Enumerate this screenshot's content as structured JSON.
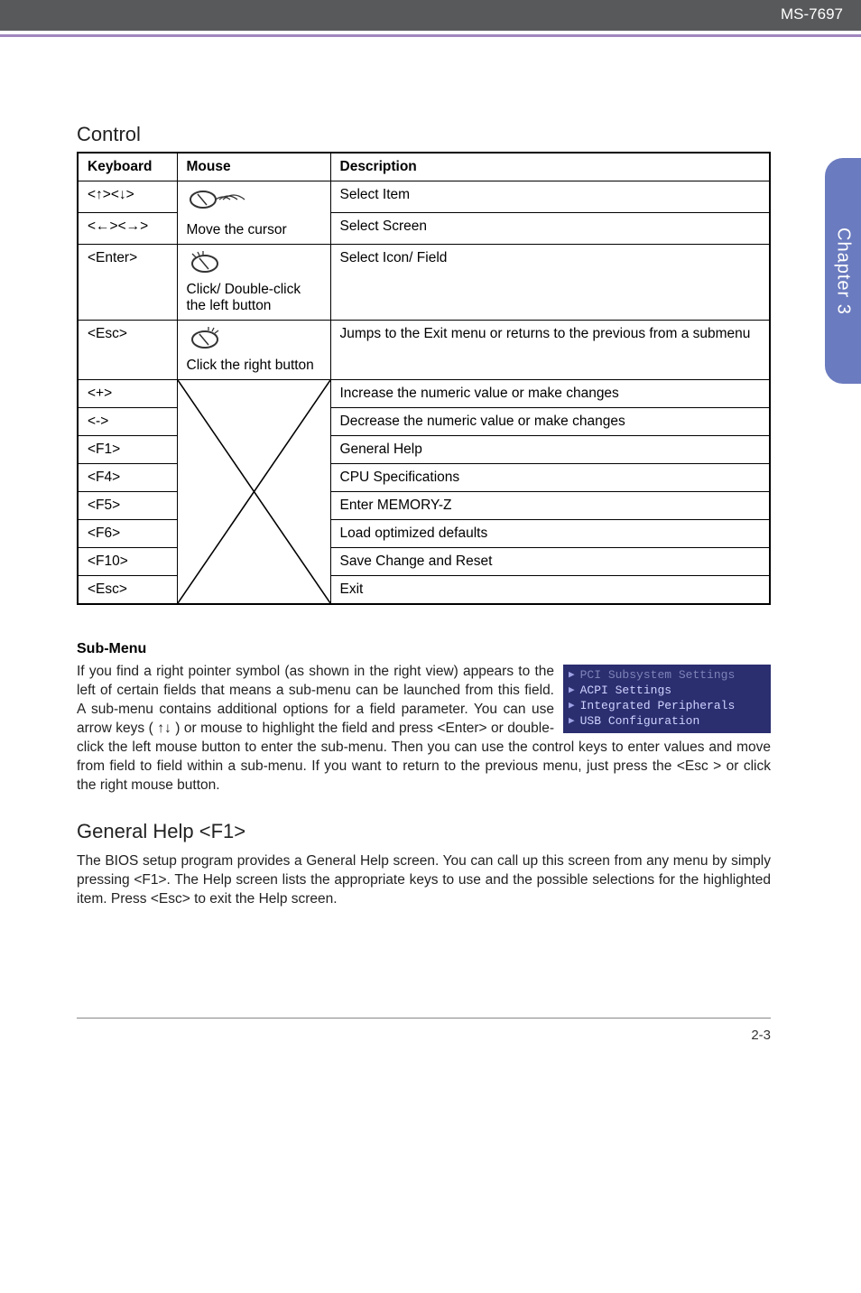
{
  "colors": {
    "header_bg": "#58595b",
    "accent": "#a186be",
    "sidetab_bg": "#6b7bbf",
    "bios_bg": "#2b2e6f",
    "bios_text": "#cfd3ff",
    "bios_dim": "#7e83b8"
  },
  "header": {
    "model": "MS-7697"
  },
  "sidetab": {
    "label": "Chapter 3"
  },
  "control": {
    "title": "Control",
    "columns": [
      "Keyboard",
      "Mouse",
      "Description"
    ],
    "mouse_labels": {
      "move_cursor": "Move the cursor",
      "click_double": "Click/ Double-click the left button",
      "click_right": "Click the right button"
    },
    "rows_top": [
      {
        "key": "<↑><↓>",
        "desc": "Select Item"
      },
      {
        "key": "<←><→>",
        "desc": "Select Screen"
      },
      {
        "key": "<Enter>",
        "desc": "Select  Icon/ Field"
      },
      {
        "key": "<Esc>",
        "desc": "Jumps to the Exit menu or returns to the previous from a submenu"
      }
    ],
    "rows_bottom": [
      {
        "key": "<+>",
        "desc": "Increase the numeric value or make changes"
      },
      {
        "key": "<->",
        "desc": "Decrease the numeric value or make changes"
      },
      {
        "key": "<F1>",
        "desc": "General Help"
      },
      {
        "key": "<F4>",
        "desc": "CPU Specifications"
      },
      {
        "key": "<F5>",
        "desc": "Enter MEMORY-Z"
      },
      {
        "key": "<F6>",
        "desc": "Load optimized defaults"
      },
      {
        "key": "<F10>",
        "desc": "Save Change and Reset"
      },
      {
        "key": "<Esc>",
        "desc": "Exit"
      }
    ]
  },
  "submenu": {
    "title": "Sub-Menu",
    "para1": "If you find a right pointer symbol (as shown in the right view) appears to the left of certain fields that means a sub-menu can be launched from this field. A sub-menu contains additional options for a field parameter. You can use arrow keys ( ↑↓ )  or mouse to highlight the field and press <Enter> or double-click the left mouse button to enter the sub-menu. Then you can use the control keys to enter values and  move from field to field within a sub-menu. If you want to return to the previous menu, just press the <Esc > or click the right mouse button.",
    "bios_items": [
      {
        "label": "PCI Subsystem Settings",
        "dim": true
      },
      {
        "label": "ACPI Settings",
        "dim": false
      },
      {
        "label": "Integrated Peripherals",
        "dim": false
      },
      {
        "label": "USB Configuration",
        "dim": false
      }
    ]
  },
  "general_help": {
    "title": "General Help <F1>",
    "para": "The BIOS setup program provides a General  Help screen. You can call up this screen from any menu by simply pressing <F1>. The Help screen lists the appropriate keys to use and the possible selections for the highlighted item. Press <Esc> to exit the Help screen."
  },
  "footer": {
    "page": "2-3"
  }
}
